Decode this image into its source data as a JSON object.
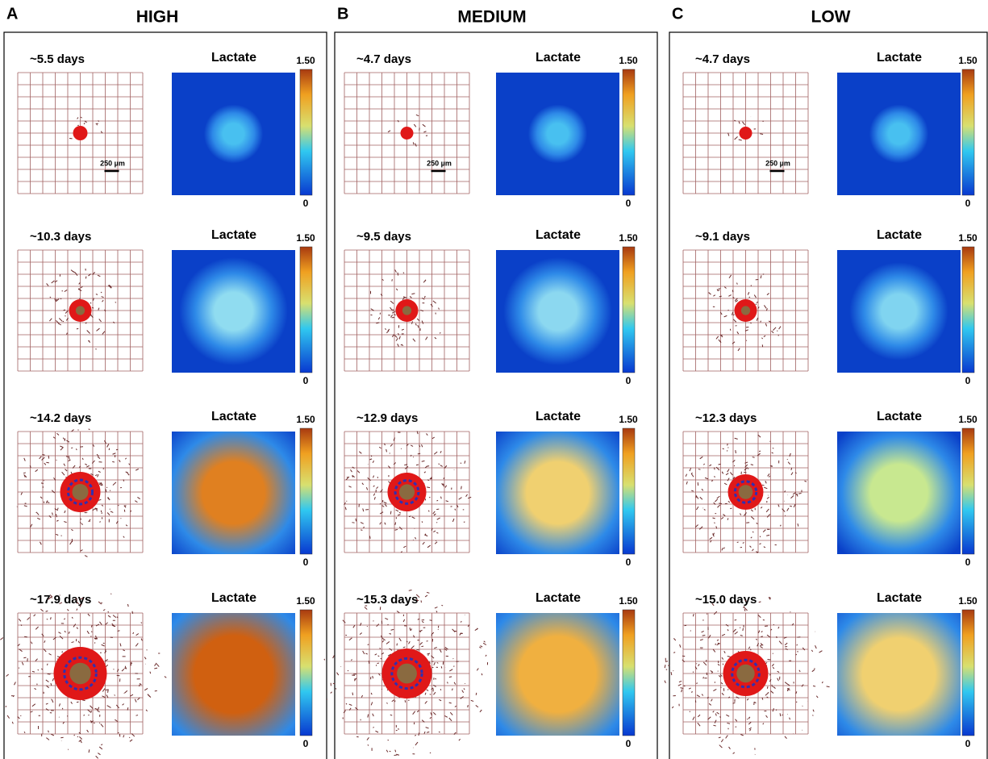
{
  "panels": [
    {
      "letter": "A",
      "title": "HIGH",
      "scale_bar_label": "250 µm",
      "rows": [
        {
          "time": "~5.5 days",
          "heatmap_title": "Lactate",
          "colorbar_max": "1.50",
          "colorbar_min": "0"
        },
        {
          "time": "~10.3 days",
          "heatmap_title": "Lactate",
          "colorbar_max": "1.50",
          "colorbar_min": "0"
        },
        {
          "time": "~14.2 days",
          "heatmap_title": "Lactate",
          "colorbar_max": "1.50",
          "colorbar_min": "0"
        },
        {
          "time": "~17.9 days",
          "heatmap_title": "Lactate",
          "colorbar_max": "1.50",
          "colorbar_min": "0"
        }
      ]
    },
    {
      "letter": "B",
      "title": "MEDIUM",
      "scale_bar_label": "250 µm",
      "rows": [
        {
          "time": "~4.7 days",
          "heatmap_title": "Lactate",
          "colorbar_max": "1.50",
          "colorbar_min": "0"
        },
        {
          "time": "~9.5 days",
          "heatmap_title": "Lactate",
          "colorbar_max": "1.50",
          "colorbar_min": "0"
        },
        {
          "time": "~12.9 days",
          "heatmap_title": "Lactate",
          "colorbar_max": "1.50",
          "colorbar_min": "0"
        },
        {
          "time": "~15.3 days",
          "heatmap_title": "Lactate",
          "colorbar_max": "1.50",
          "colorbar_min": "0"
        }
      ]
    },
    {
      "letter": "C",
      "title": "LOW",
      "scale_bar_label": "250 µm",
      "rows": [
        {
          "time": "~4.7 days",
          "heatmap_title": "Lactate",
          "colorbar_max": "1.50",
          "colorbar_min": "0"
        },
        {
          "time": "~9.1 days",
          "heatmap_title": "Lactate",
          "colorbar_max": "1.50",
          "colorbar_min": "0"
        },
        {
          "time": "~12.3 days",
          "heatmap_title": "Lactate",
          "colorbar_max": "1.50",
          "colorbar_min": "0"
        },
        {
          "time": "~15.0 days",
          "heatmap_title": "Lactate",
          "colorbar_max": "1.50",
          "colorbar_min": "0"
        }
      ]
    }
  ]
}
